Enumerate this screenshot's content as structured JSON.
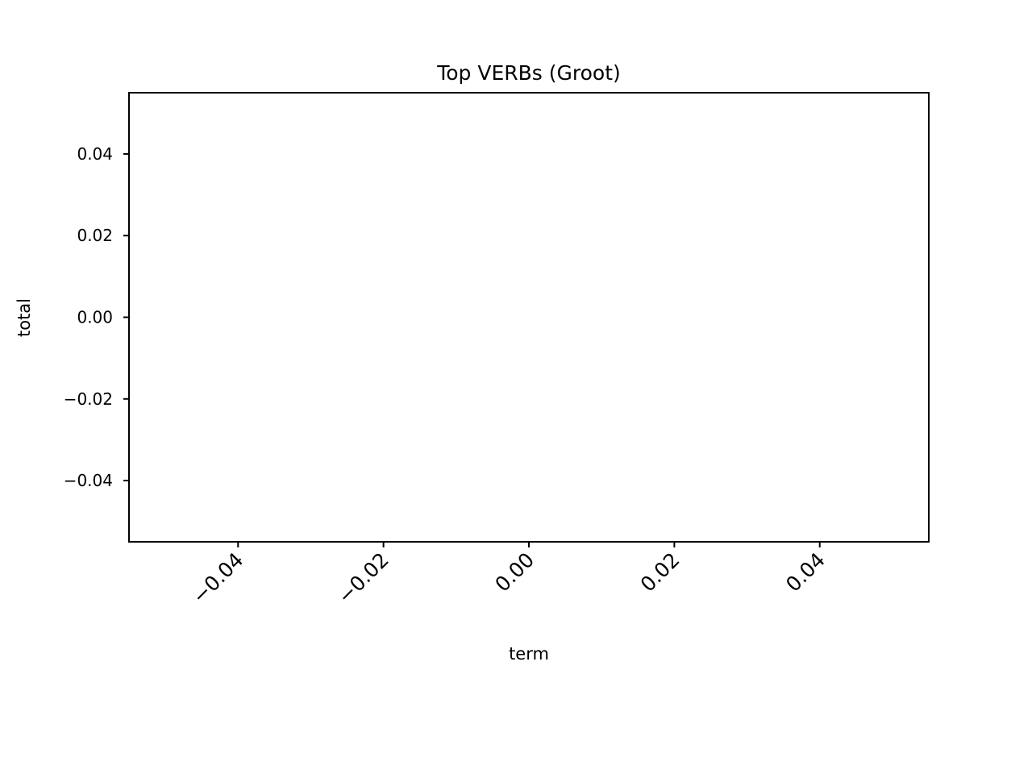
{
  "chart_data": {
    "type": "bar",
    "title": "Top VERBs (Groot)",
    "xlabel": "term",
    "ylabel": "total",
    "categories": [],
    "values": [],
    "xlim": [
      -0.055,
      0.055
    ],
    "ylim": [
      -0.055,
      0.055
    ],
    "x_ticks": [
      "−0.04",
      "−0.02",
      "0.00",
      "0.02",
      "0.04"
    ],
    "x_tick_values": [
      -0.04,
      -0.02,
      0.0,
      0.02,
      0.04
    ],
    "y_ticks": [
      "0.04",
      "0.02",
      "0.00",
      "−0.02",
      "−0.04"
    ],
    "y_tick_values": [
      0.04,
      0.02,
      0.0,
      -0.02,
      -0.04
    ],
    "x_tick_rotation_deg": 45,
    "grid": false,
    "legend": "none"
  },
  "colors": {
    "axes": "#000000",
    "background": "#ffffff"
  }
}
